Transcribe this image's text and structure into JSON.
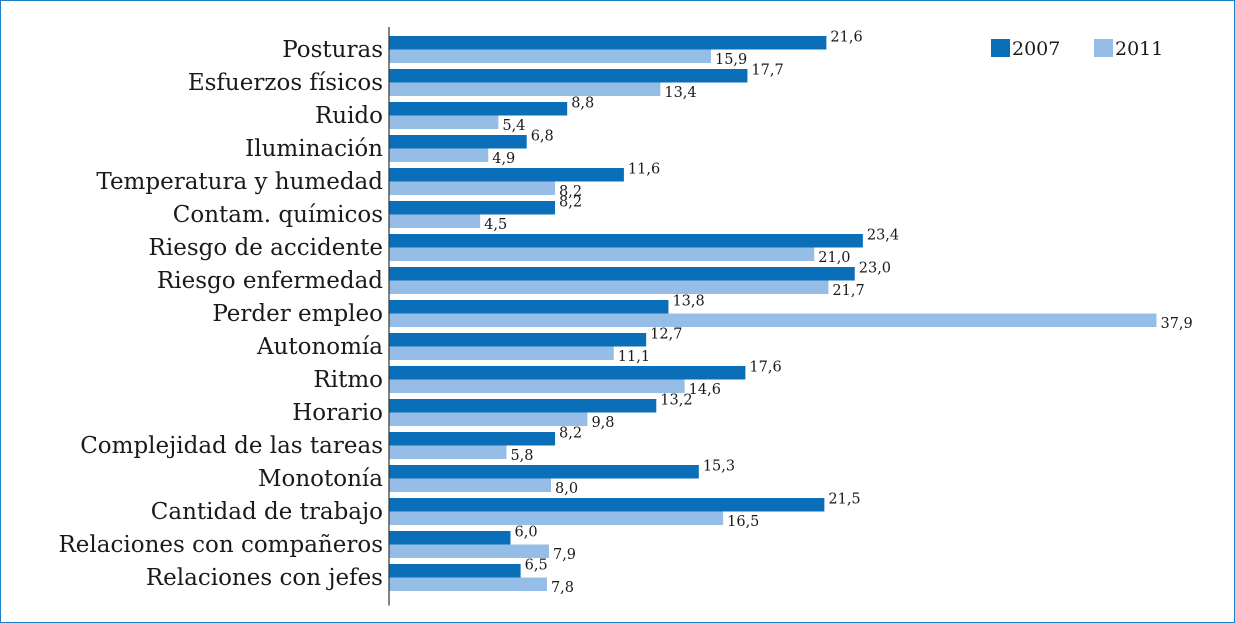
{
  "chart_data": {
    "type": "bar",
    "orientation": "horizontal",
    "title": "",
    "xlabel": "",
    "ylabel": "",
    "xlim": [
      0,
      38
    ],
    "grid": false,
    "legend_position": "top-right",
    "categories": [
      "Posturas",
      "Esfuerzos físicos",
      "Ruido",
      "Iluminación",
      "Temperatura y humedad",
      "Contam. químicos",
      "Riesgo de accidente",
      "Riesgo enfermedad",
      "Perder empleo",
      "Autonomía",
      "Ritmo",
      "Horario",
      "Complejidad de las tareas",
      "Monotonía",
      "Cantidad de trabajo",
      "Relaciones con compañeros",
      "Relaciones con jefes"
    ],
    "series": [
      {
        "name": "2007",
        "color": "#0a6fb8",
        "values": [
          21.6,
          17.7,
          8.8,
          6.8,
          11.6,
          8.2,
          23.4,
          23.0,
          13.8,
          12.7,
          17.6,
          13.2,
          8.2,
          15.3,
          21.5,
          6.0,
          6.5
        ],
        "labels": [
          "21,6",
          "17,7",
          "8,8",
          "6,8",
          "11,6",
          "8,2",
          "23,4",
          "23,0",
          "13,8",
          "12,7",
          "17,6",
          "13,2",
          "8,2",
          "15,3",
          "21,5",
          "6,0",
          "6,5"
        ]
      },
      {
        "name": "2011",
        "color": "#96bde6",
        "values": [
          15.9,
          13.4,
          5.4,
          4.9,
          8.2,
          4.5,
          21.0,
          21.7,
          37.9,
          11.1,
          14.6,
          9.8,
          5.8,
          8.0,
          16.5,
          7.9,
          7.8
        ],
        "labels": [
          "15,9",
          "13,4",
          "5,4",
          "4,9",
          "8,2",
          "4,5",
          "21,0",
          "21,7",
          "37,9",
          "11,1",
          "14,6",
          "9,8",
          "5,8",
          "8,0",
          "16,5",
          "7,9",
          "7,8"
        ]
      }
    ]
  }
}
